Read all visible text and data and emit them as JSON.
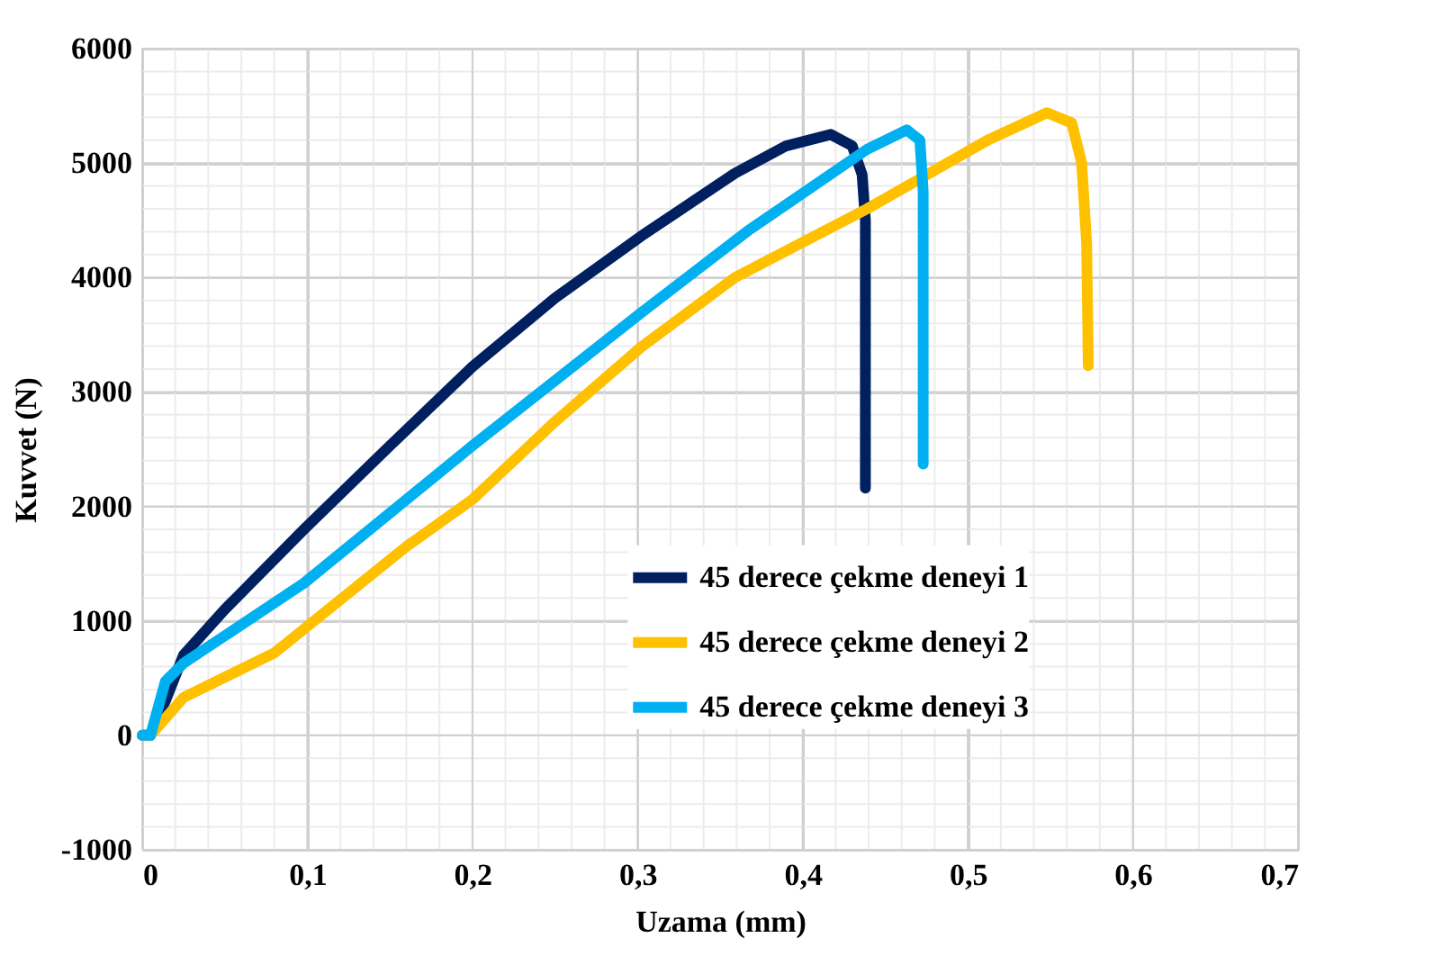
{
  "chart_data": {
    "type": "line",
    "xlabel": "Uzama (mm)",
    "ylabel": "Kuvvet (N)",
    "xlim": [
      0,
      0.7
    ],
    "xticks": [
      0,
      {
        "value": 0.1,
        "label": "0,1"
      },
      {
        "value": 0.2,
        "label": "0,2"
      },
      {
        "value": 0.3,
        "label": "0,3"
      },
      {
        "value": 0.4,
        "label": "0,4"
      },
      {
        "value": 0.5,
        "label": "0,5"
      },
      {
        "value": 0.6,
        "label": "0,6"
      },
      {
        "value": 0.7,
        "label": "0,7"
      }
    ],
    "ylim": [
      -1000,
      6000
    ],
    "yticks": [
      -1000,
      0,
      1000,
      2000,
      3000,
      4000,
      5000,
      6000
    ],
    "grid": true,
    "legend": "bottom right",
    "marker": "none",
    "line_style": "solid",
    "series": [
      {
        "name": "45 derece çekme deneyi 1",
        "color": "#002060",
        "x": [
          0,
          0.005,
          0.014,
          0.025,
          0.05,
          0.098,
          0.15,
          0.2,
          0.25,
          0.302,
          0.359,
          0.39,
          0.417,
          0.43,
          0.436,
          0.438,
          0.438,
          0.438
        ],
        "values": [
          0,
          0,
          300,
          700,
          1100,
          1800,
          2530,
          3220,
          3820,
          4360,
          4910,
          5150,
          5250,
          5150,
          4900,
          4500,
          3600,
          2160
        ]
      },
      {
        "name": "45 derece çekme deneyi 2",
        "color": "#ffc000",
        "x": [
          0,
          0.005,
          0.025,
          0.08,
          0.16,
          0.2,
          0.25,
          0.302,
          0.359,
          0.439,
          0.512,
          0.548,
          0.563,
          0.569,
          0.572,
          0.573
        ],
        "values": [
          0,
          0,
          330,
          720,
          1650,
          2060,
          2740,
          3390,
          4000,
          4600,
          5200,
          5440,
          5350,
          5000,
          4300,
          3230
        ]
      },
      {
        "name": "45 derece çekme deneyi 3",
        "color": "#00b0f0",
        "x": [
          0,
          0.005,
          0.014,
          0.025,
          0.098,
          0.2,
          0.302,
          0.367,
          0.439,
          0.463,
          0.471,
          0.473,
          0.473,
          0.473
        ],
        "values": [
          0,
          0,
          470,
          630,
          1330,
          2530,
          3690,
          4410,
          5120,
          5290,
          5200,
          4750,
          3700,
          2370
        ]
      }
    ]
  }
}
